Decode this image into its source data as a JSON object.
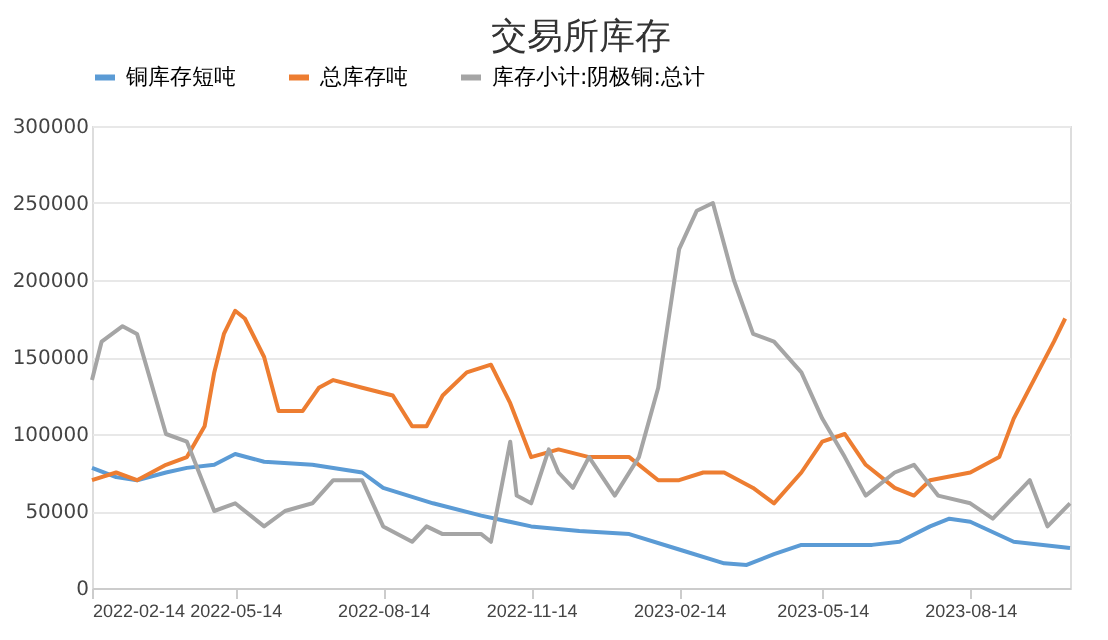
{
  "chart_data": {
    "type": "line",
    "title": "交易所库存",
    "series": [
      {
        "name": "铜库存短吨",
        "color": "#5b9bd5",
        "x": [
          "2022-02-14",
          "2022-03-01",
          "2022-03-14",
          "2022-04-01",
          "2022-04-14",
          "2022-05-01",
          "2022-05-14",
          "2022-06-01",
          "2022-07-01",
          "2022-08-01",
          "2022-08-14",
          "2022-09-14",
          "2022-10-14",
          "2022-11-14",
          "2022-12-14",
          "2023-01-14",
          "2023-02-14",
          "2023-03-14",
          "2023-03-28",
          "2023-04-14",
          "2023-05-01",
          "2023-06-14",
          "2023-07-01",
          "2023-07-20",
          "2023-08-01",
          "2023-08-14",
          "2023-09-10",
          "2023-10-15"
        ],
        "values": [
          78000,
          72000,
          70000,
          75000,
          78000,
          80000,
          87000,
          82000,
          80000,
          75000,
          65000,
          55000,
          47000,
          40000,
          37000,
          35000,
          25000,
          16000,
          15000,
          22000,
          28000,
          28000,
          30000,
          40000,
          45000,
          43000,
          30000,
          26000
        ]
      },
      {
        "name": "总库存吨",
        "color": "#ed7d31",
        "x": [
          "2022-02-14",
          "2022-03-01",
          "2022-03-14",
          "2022-04-01",
          "2022-04-14",
          "2022-04-25",
          "2022-05-01",
          "2022-05-07",
          "2022-05-14",
          "2022-05-20",
          "2022-06-01",
          "2022-06-10",
          "2022-06-25",
          "2022-07-05",
          "2022-07-14",
          "2022-08-01",
          "2022-08-20",
          "2022-09-01",
          "2022-09-10",
          "2022-09-20",
          "2022-10-05",
          "2022-10-20",
          "2022-11-01",
          "2022-11-14",
          "2022-12-01",
          "2022-12-20",
          "2023-01-14",
          "2023-02-01",
          "2023-02-14",
          "2023-03-01",
          "2023-03-14",
          "2023-04-01",
          "2023-04-14",
          "2023-05-01",
          "2023-05-14",
          "2023-05-28",
          "2023-06-10",
          "2023-06-28",
          "2023-07-10",
          "2023-07-20",
          "2023-08-14",
          "2023-09-01",
          "2023-09-10",
          "2023-09-25",
          "2023-10-05",
          "2023-10-12"
        ],
        "values": [
          70000,
          75000,
          70000,
          80000,
          85000,
          105000,
          140000,
          165000,
          180000,
          175000,
          150000,
          115000,
          115000,
          130000,
          135000,
          130000,
          125000,
          105000,
          105000,
          125000,
          140000,
          145000,
          120000,
          85000,
          90000,
          85000,
          85000,
          70000,
          70000,
          75000,
          75000,
          65000,
          55000,
          75000,
          95000,
          100000,
          80000,
          65000,
          60000,
          70000,
          75000,
          85000,
          110000,
          140000,
          160000,
          175000
        ]
      },
      {
        "name": "库存小计:阴极铜:总计",
        "color": "#a5a5a5",
        "x": [
          "2022-02-14",
          "2022-02-20",
          "2022-03-05",
          "2022-03-14",
          "2022-04-01",
          "2022-04-14",
          "2022-05-01",
          "2022-05-14",
          "2022-06-01",
          "2022-06-14",
          "2022-07-01",
          "2022-07-14",
          "2022-08-01",
          "2022-08-14",
          "2022-09-01",
          "2022-09-10",
          "2022-09-20",
          "2022-10-14",
          "2022-10-20",
          "2022-11-01",
          "2022-11-05",
          "2022-11-14",
          "2022-11-25",
          "2022-12-01",
          "2022-12-10",
          "2022-12-20",
          "2023-01-05",
          "2023-01-20",
          "2023-02-01",
          "2023-02-14",
          "2023-02-25",
          "2023-03-07",
          "2023-03-20",
          "2023-04-01",
          "2023-04-14",
          "2023-05-01",
          "2023-05-14",
          "2023-05-28",
          "2023-06-10",
          "2023-06-28",
          "2023-07-10",
          "2023-07-25",
          "2023-08-14",
          "2023-08-28",
          "2023-09-20",
          "2023-10-01",
          "2023-10-15"
        ],
        "values": [
          135000,
          160000,
          170000,
          165000,
          100000,
          95000,
          50000,
          55000,
          40000,
          50000,
          55000,
          70000,
          70000,
          40000,
          30000,
          40000,
          35000,
          35000,
          30000,
          95000,
          60000,
          55000,
          90000,
          75000,
          65000,
          85000,
          60000,
          85000,
          130000,
          220000,
          245000,
          250000,
          200000,
          165000,
          160000,
          140000,
          110000,
          85000,
          60000,
          75000,
          80000,
          60000,
          55000,
          45000,
          70000,
          40000,
          55000
        ]
      }
    ],
    "xlim": [
      "2022-02-14",
      "2023-10-15"
    ],
    "xticks": [
      "2022-02-14",
      "2022-05-14",
      "2022-08-14",
      "2022-11-14",
      "2023-02-14",
      "2023-05-14",
      "2023-08-14"
    ],
    "ylim": [
      0,
      300000
    ],
    "yticks": [
      0,
      50000,
      100000,
      150000,
      200000,
      250000,
      300000
    ],
    "grid": "y",
    "legend": "top",
    "line_style": "solid",
    "marker": "none"
  }
}
